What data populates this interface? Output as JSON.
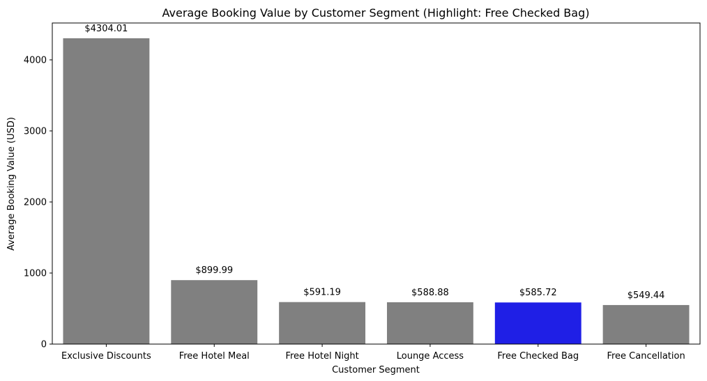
{
  "chart_data": {
    "type": "bar",
    "title": "Average Booking Value by Customer Segment (Highlight: Free Checked Bag)",
    "xlabel": "Customer Segment",
    "ylabel": "Average Booking Value (USD)",
    "categories": [
      "Exclusive Discounts",
      "Free Hotel Meal",
      "Free Hotel Night",
      "Lounge Access",
      "Free Checked Bag",
      "Free Cancellation"
    ],
    "values": [
      4304.01,
      899.99,
      591.19,
      588.88,
      585.72,
      549.44
    ],
    "data_labels": [
      "$4304.01",
      "$899.99",
      "$591.19",
      "$588.88",
      "$585.72",
      "$549.44"
    ],
    "highlight": "Free Checked Bag",
    "colors": {
      "default": "#808080",
      "highlight": "#1f1fe6"
    },
    "ylim": [
      0,
      4519
    ],
    "yticks": [
      0,
      1000,
      2000,
      3000,
      4000
    ],
    "grid": false,
    "legend": "none"
  }
}
